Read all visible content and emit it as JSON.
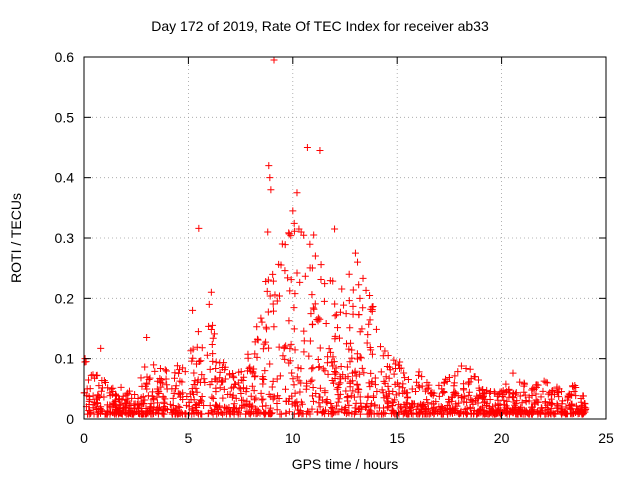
{
  "chart_data": {
    "type": "scatter",
    "title": "Day 172 of 2019, Rate Of TEC Index for receiver ab33",
    "xlabel": "GPS time / hours",
    "ylabel": "ROTI / TECUs",
    "xlim": [
      0,
      25
    ],
    "ylim": [
      0,
      0.6
    ],
    "xticks": [
      0,
      5,
      10,
      15,
      20,
      25
    ],
    "yticks": [
      0,
      0.1,
      0.2,
      0.3,
      0.4,
      0.5,
      0.6
    ],
    "xtick_labels": [
      "0",
      "5",
      "10",
      "15",
      "20",
      "25"
    ],
    "ytick_labels": [
      "0",
      "0.1",
      "0.2",
      "0.3",
      "0.4",
      "0.5",
      "0.6"
    ],
    "grid": true,
    "marker": "plus",
    "colors": {
      "points": "#ff0000",
      "grid": "#a0a0a0",
      "axes": "#000000"
    },
    "series": [
      {
        "envelope": [
          [
            0.0,
            0.105
          ],
          [
            0.5,
            0.075
          ],
          [
            1.0,
            0.07
          ],
          [
            1.5,
            0.05
          ],
          [
            2.0,
            0.045
          ],
          [
            2.5,
            0.04
          ],
          [
            3.0,
            0.1
          ],
          [
            3.5,
            0.085
          ],
          [
            4.0,
            0.09
          ],
          [
            4.5,
            0.09
          ],
          [
            5.0,
            0.1
          ],
          [
            5.5,
            0.14
          ],
          [
            6.0,
            0.19
          ],
          [
            6.5,
            0.1
          ],
          [
            7.0,
            0.07
          ],
          [
            7.5,
            0.08
          ],
          [
            8.0,
            0.11
          ],
          [
            8.5,
            0.2
          ],
          [
            9.0,
            0.27
          ],
          [
            9.5,
            0.26
          ],
          [
            10.0,
            0.34
          ],
          [
            10.5,
            0.3
          ],
          [
            11.0,
            0.3
          ],
          [
            11.5,
            0.25
          ],
          [
            12.0,
            0.23
          ],
          [
            12.5,
            0.2
          ],
          [
            13.0,
            0.24
          ],
          [
            13.5,
            0.22
          ],
          [
            14.0,
            0.16
          ],
          [
            14.5,
            0.11
          ],
          [
            15.0,
            0.09
          ],
          [
            15.5,
            0.08
          ],
          [
            16.0,
            0.075
          ],
          [
            16.5,
            0.06
          ],
          [
            17.0,
            0.055
          ],
          [
            17.5,
            0.065
          ],
          [
            18.0,
            0.09
          ],
          [
            18.5,
            0.08
          ],
          [
            19.0,
            0.055
          ],
          [
            19.5,
            0.04
          ],
          [
            20.0,
            0.04
          ],
          [
            20.5,
            0.07
          ],
          [
            21.0,
            0.055
          ],
          [
            21.5,
            0.045
          ],
          [
            22.0,
            0.06
          ],
          [
            22.5,
            0.05
          ],
          [
            23.0,
            0.035
          ],
          [
            23.5,
            0.055
          ],
          [
            24.0,
            0.03
          ]
        ],
        "outliers": [
          [
            0.05,
            0.1
          ],
          [
            0.1,
            0.095
          ],
          [
            0.8,
            0.117
          ],
          [
            3.0,
            0.135
          ],
          [
            5.5,
            0.316
          ],
          [
            5.2,
            0.18
          ],
          [
            6.1,
            0.21
          ],
          [
            6.0,
            0.19
          ],
          [
            8.8,
            0.31
          ],
          [
            8.85,
            0.42
          ],
          [
            8.9,
            0.4
          ],
          [
            8.95,
            0.38
          ],
          [
            9.1,
            0.595
          ],
          [
            9.5,
            0.29
          ],
          [
            10.2,
            0.375
          ],
          [
            10.0,
            0.345
          ],
          [
            10.4,
            0.31
          ],
          [
            10.7,
            0.45
          ],
          [
            11.3,
            0.445
          ],
          [
            11.0,
            0.305
          ],
          [
            12.0,
            0.315
          ],
          [
            13.0,
            0.275
          ],
          [
            13.1,
            0.26
          ],
          [
            12.7,
            0.24
          ],
          [
            14.2,
            0.12
          ]
        ]
      }
    ]
  }
}
